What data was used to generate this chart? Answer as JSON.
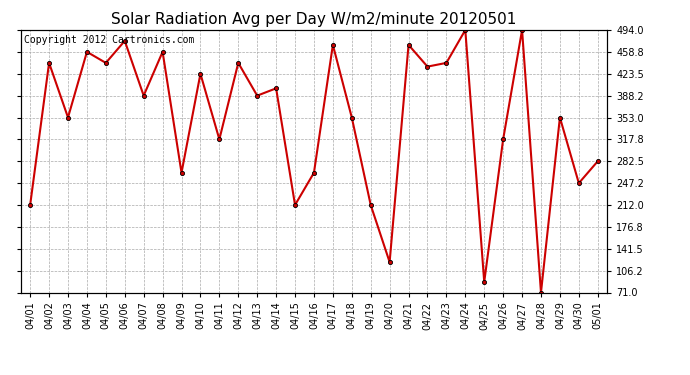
{
  "title": "Solar Radiation Avg per Day W/m2/minute 20120501",
  "copyright": "Copyright 2012 Cartronics.com",
  "labels": [
    "04/01",
    "04/02",
    "04/03",
    "04/04",
    "04/05",
    "04/06",
    "04/07",
    "04/08",
    "04/09",
    "04/10",
    "04/11",
    "04/12",
    "04/13",
    "04/14",
    "04/15",
    "04/16",
    "04/17",
    "04/18",
    "04/19",
    "04/20",
    "04/21",
    "04/22",
    "04/23",
    "04/24",
    "04/25",
    "04/26",
    "04/27",
    "04/28",
    "04/29",
    "04/30",
    "05/01"
  ],
  "values": [
    212.0,
    441.0,
    353.0,
    458.8,
    441.0,
    476.5,
    388.2,
    458.8,
    264.0,
    423.5,
    317.8,
    441.0,
    388.2,
    400.0,
    212.0,
    264.0,
    470.0,
    353.0,
    212.0,
    120.0,
    470.0,
    435.0,
    441.0,
    494.0,
    88.0,
    317.8,
    494.0,
    71.0,
    353.0,
    247.2,
    282.5
  ],
  "line_color": "#cc0000",
  "marker_color": "#000000",
  "marker_size": 3,
  "bg_color": "#ffffff",
  "grid_color": "#aaaaaa",
  "ylim_min": 71.0,
  "ylim_max": 494.0,
  "yticks": [
    71.0,
    106.2,
    141.5,
    176.8,
    212.0,
    247.2,
    282.5,
    317.8,
    353.0,
    388.2,
    423.5,
    458.8,
    494.0
  ],
  "title_fontsize": 11,
  "copyright_fontsize": 7,
  "tick_fontsize": 7,
  "figwidth": 6.9,
  "figheight": 3.75,
  "dpi": 100
}
